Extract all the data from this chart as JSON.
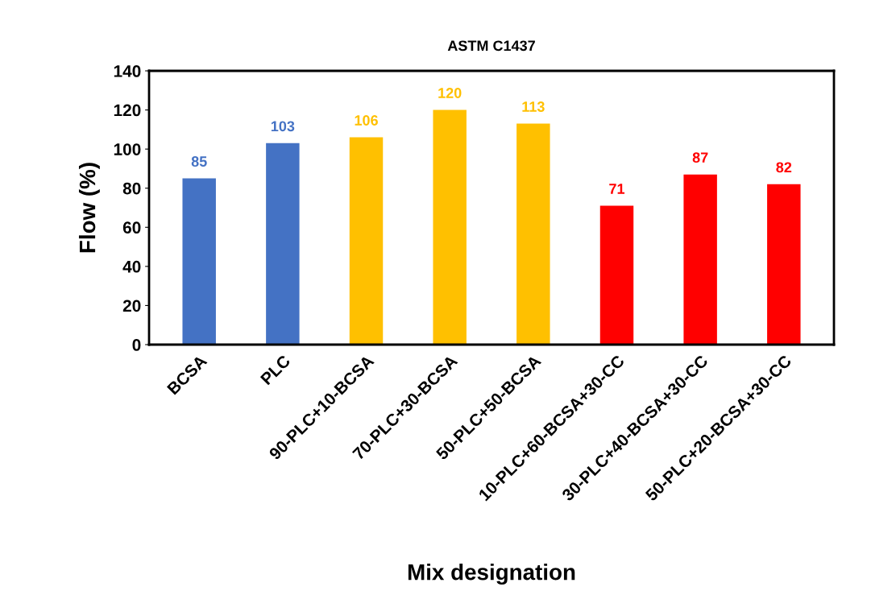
{
  "chart_data": {
    "type": "bar",
    "title": "ASTM C1437",
    "xlabel": "Mix designation",
    "ylabel": "Flow (%)",
    "categories": [
      "BCSA",
      "PLC",
      "90-PLC+10-BCSA",
      "70-PLC+30-BCSA",
      "50-PLC+50-BCSA",
      "10-PLC+60-BCSA+30-CC",
      "30-PLC+40-BCSA+30-CC",
      "50-PLC+20-BCSA+30-CC"
    ],
    "values": [
      85,
      103,
      106,
      120,
      113,
      71,
      87,
      82
    ],
    "colors": [
      "#4472c4",
      "#4472c4",
      "#ffc000",
      "#ffc000",
      "#ffc000",
      "#ff0000",
      "#ff0000",
      "#ff0000"
    ],
    "ylim": [
      0,
      140
    ],
    "yticks": [
      0,
      20,
      40,
      60,
      80,
      100,
      120,
      140
    ],
    "grid": false,
    "legend": false,
    "data_labels": true
  }
}
